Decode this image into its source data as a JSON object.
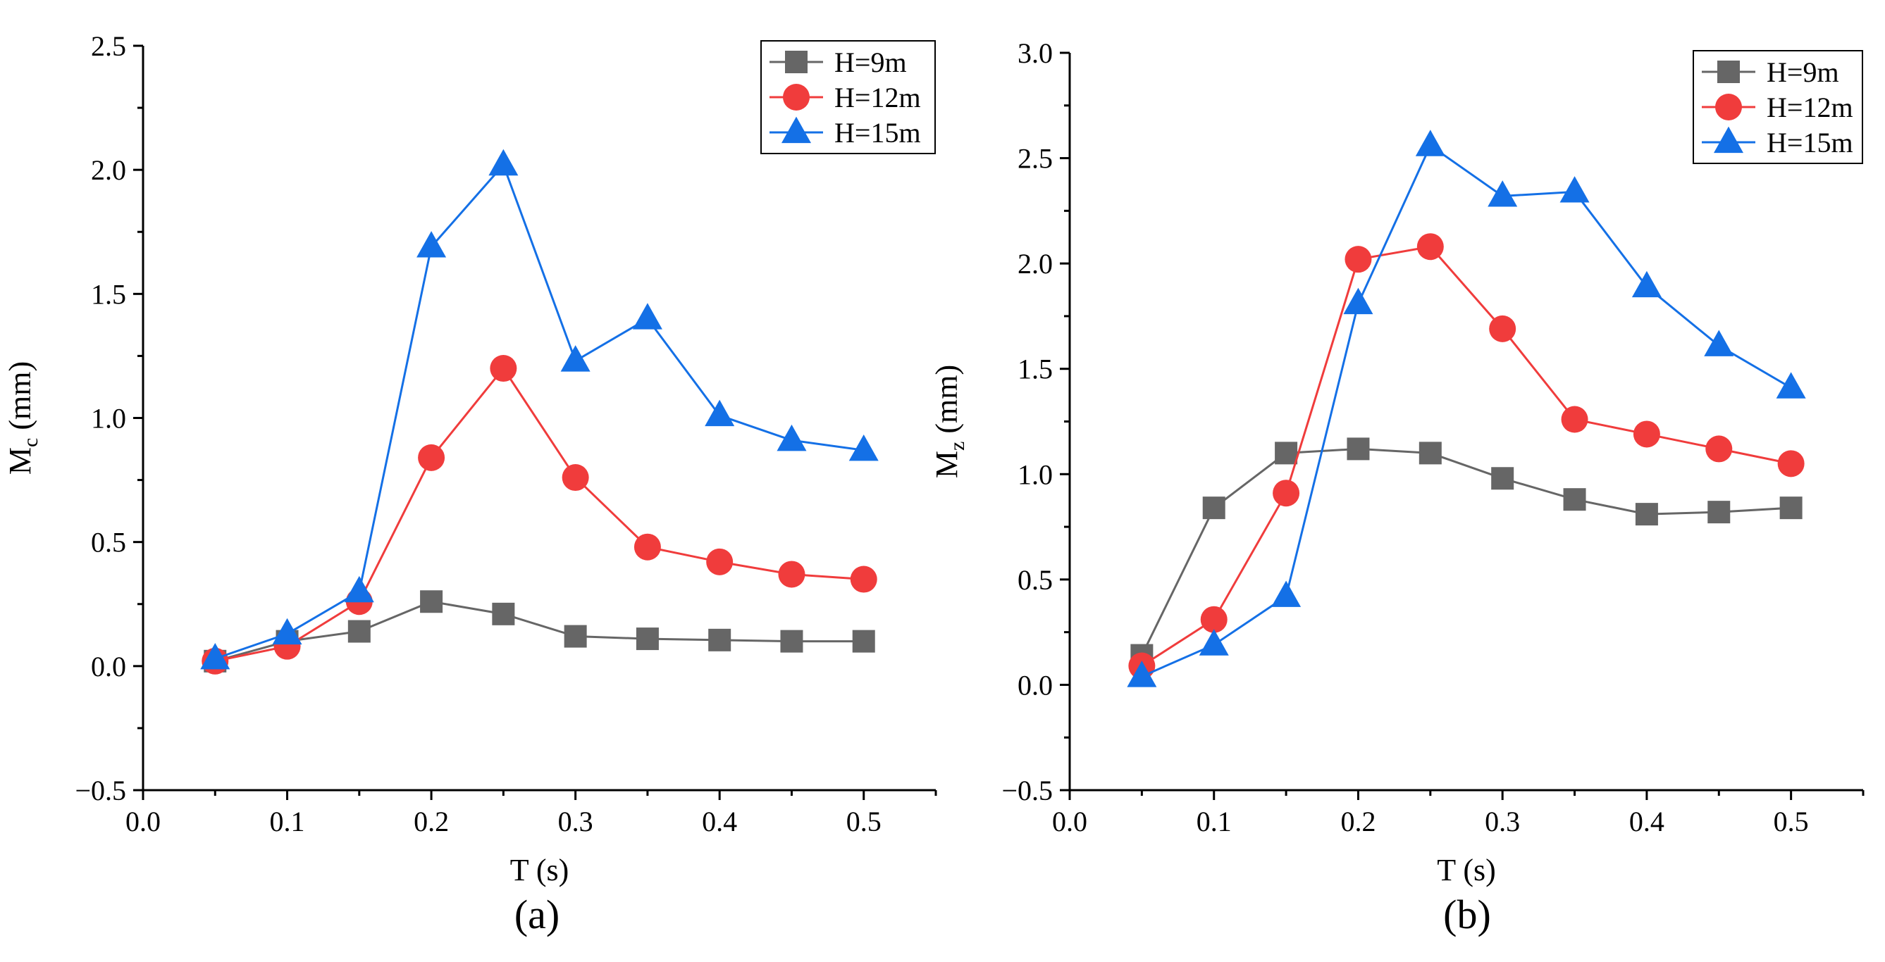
{
  "colors": {
    "H9": "#666666",
    "H12": "#f03c3c",
    "H15": "#1470e6",
    "axis": "#000000"
  },
  "chart_data": [
    {
      "type": "line",
      "panel_label": "(a)",
      "xlabel": "T (s)",
      "ylabel_main": "M",
      "ylabel_sub": "c",
      "ylabel_unit": " (mm)",
      "xlim": [
        0.0,
        0.55
      ],
      "ylim": [
        -0.5,
        2.5
      ],
      "xticks": [
        0.0,
        0.1,
        0.2,
        0.3,
        0.4,
        0.5
      ],
      "xtick_labels": [
        "0.0",
        "0.1",
        "0.2",
        "0.3",
        "0.4",
        "0.5"
      ],
      "yticks": [
        -0.5,
        0.0,
        0.5,
        1.0,
        1.5,
        2.0,
        2.5
      ],
      "ytick_labels": [
        "−0.5",
        "0.0",
        "0.5",
        "1.0",
        "1.5",
        "2.0",
        "2.5"
      ],
      "legend_position": "top-right",
      "grid": false,
      "x": [
        0.05,
        0.1,
        0.15,
        0.2,
        0.25,
        0.3,
        0.35,
        0.4,
        0.45,
        0.5
      ],
      "series": [
        {
          "name": "H=9m",
          "marker": "square",
          "color": "#666666",
          "values": [
            0.02,
            0.1,
            0.14,
            0.26,
            0.21,
            0.12,
            0.11,
            0.105,
            0.1,
            0.1
          ]
        },
        {
          "name": "H=12m",
          "marker": "circle",
          "color": "#f03c3c",
          "values": [
            0.02,
            0.08,
            0.26,
            0.84,
            1.2,
            0.76,
            0.48,
            0.42,
            0.37,
            0.35
          ]
        },
        {
          "name": "H=15m",
          "marker": "triangle",
          "color": "#1470e6",
          "values": [
            0.03,
            0.13,
            0.3,
            1.69,
            2.02,
            1.23,
            1.4,
            1.01,
            0.91,
            0.87
          ]
        }
      ]
    },
    {
      "type": "line",
      "panel_label": "(b)",
      "xlabel": "T (s)",
      "ylabel_main": "M",
      "ylabel_sub": "z",
      "ylabel_unit": " (mm)",
      "xlim": [
        0.0,
        0.55
      ],
      "ylim": [
        -0.5,
        3.0
      ],
      "xticks": [
        0.0,
        0.1,
        0.2,
        0.3,
        0.4,
        0.5
      ],
      "xtick_labels": [
        "0.0",
        "0.1",
        "0.2",
        "0.3",
        "0.4",
        "0.5"
      ],
      "yticks": [
        -0.5,
        0.0,
        0.5,
        1.0,
        1.5,
        2.0,
        2.5,
        3.0
      ],
      "ytick_labels": [
        "−0.5",
        "0.0",
        "0.5",
        "1.0",
        "1.5",
        "2.0",
        "2.5",
        "3.0"
      ],
      "legend_position": "top-right",
      "grid": false,
      "x": [
        0.05,
        0.1,
        0.15,
        0.2,
        0.25,
        0.3,
        0.35,
        0.4,
        0.45,
        0.5
      ],
      "series": [
        {
          "name": "H=9m",
          "marker": "square",
          "color": "#666666",
          "values": [
            0.14,
            0.84,
            1.1,
            1.12,
            1.1,
            0.98,
            0.88,
            0.81,
            0.82,
            0.84
          ]
        },
        {
          "name": "H=12m",
          "marker": "circle",
          "color": "#f03c3c",
          "values": [
            0.09,
            0.31,
            0.91,
            2.02,
            2.08,
            1.69,
            1.26,
            1.19,
            1.12,
            1.05
          ]
        },
        {
          "name": "H=15m",
          "marker": "triangle",
          "color": "#1470e6",
          "values": [
            0.04,
            0.19,
            0.42,
            1.81,
            2.56,
            2.32,
            2.34,
            1.89,
            1.61,
            1.41
          ]
        }
      ]
    }
  ]
}
